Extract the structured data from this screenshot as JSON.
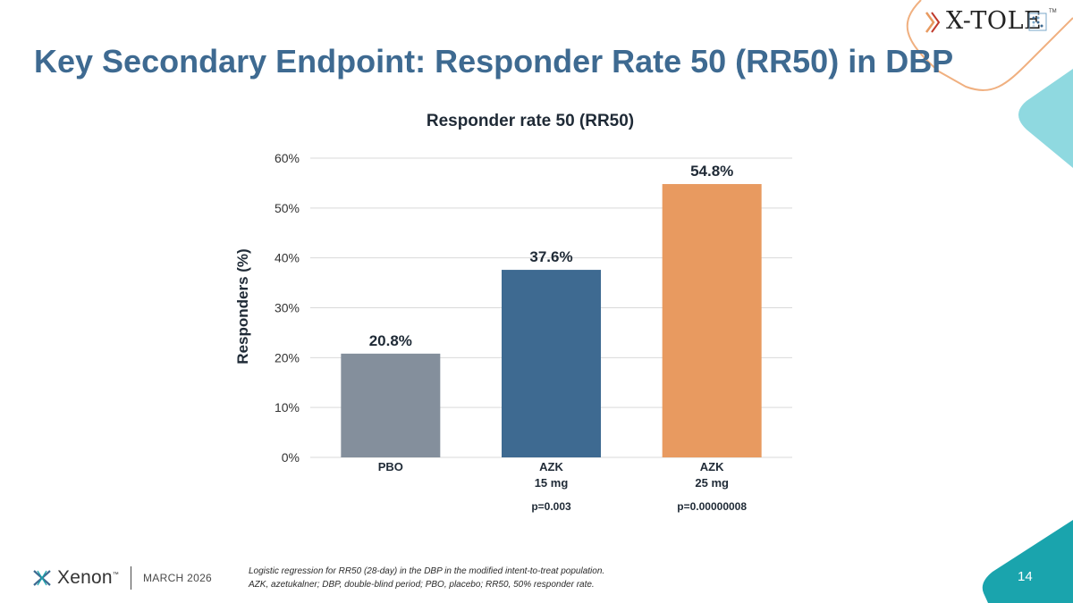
{
  "slide": {
    "title": "Key Secondary Endpoint: Responder Rate 50 (RR50) in DBP",
    "page_number": "14",
    "date": "MARCH 2026",
    "footnote_line1": "Logistic regression for RR50 (28-day) in the DBP in the modified intent-to-treat population.",
    "footnote_line2": "AZK, azetukalner; DBP, double-blind period; PBO, placebo; RR50, 50% responder rate.",
    "company_name": "Xenon",
    "company_tm": "™",
    "study_logo_text": "X-TOLE",
    "study_logo_tm": "TM"
  },
  "colors": {
    "title": "#3e6a91",
    "pbo": "#848f9c",
    "azk15": "#3e6a91",
    "azk25": "#e89a60",
    "gridline": "#d9d9d9",
    "teal": "#1aa4ad",
    "light_teal": "#8fd9e0",
    "orange_outline": "#f0b080"
  },
  "chart_data": {
    "type": "bar",
    "title": "Responder rate 50 (RR50)",
    "ylabel": "Responders (%)",
    "xlabel": "",
    "ylim": [
      0,
      60
    ],
    "yticks": [
      0,
      10,
      20,
      30,
      40,
      50,
      60
    ],
    "ytick_labels": [
      "0%",
      "10%",
      "20%",
      "30%",
      "40%",
      "50%",
      "60%"
    ],
    "grid": true,
    "categories": [
      {
        "line1": "PBO",
        "line2": "",
        "pvalue": ""
      },
      {
        "line1": "AZK",
        "line2": "15 mg",
        "pvalue": "p=0.003"
      },
      {
        "line1": "AZK",
        "line2": "25 mg",
        "pvalue": "p=0.00000008"
      }
    ],
    "values": [
      20.8,
      37.6,
      54.8
    ],
    "value_labels": [
      "20.8%",
      "37.6%",
      "54.8%"
    ]
  }
}
